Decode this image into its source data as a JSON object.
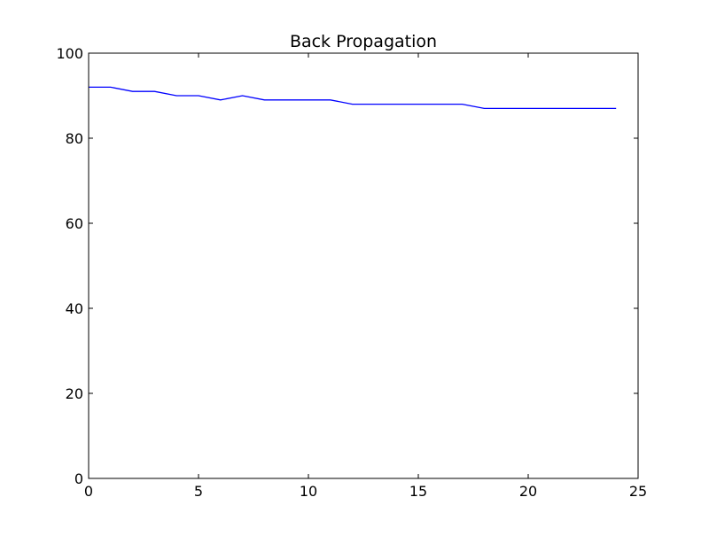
{
  "chart_data": {
    "type": "line",
    "title": "Back Propagation",
    "xlabel": "",
    "ylabel": "",
    "xlim": [
      0,
      25
    ],
    "ylim": [
      0,
      100
    ],
    "xticks": [
      0,
      5,
      10,
      15,
      20,
      25
    ],
    "yticks": [
      0,
      20,
      40,
      60,
      80,
      100
    ],
    "xtick_labels": [
      "0",
      "5",
      "10",
      "15",
      "20",
      "25"
    ],
    "ytick_labels": [
      "0",
      "20",
      "40",
      "60",
      "80",
      "100"
    ],
    "grid": false,
    "series": [
      {
        "color": "#0000ff",
        "x": [
          0,
          1,
          2,
          3,
          4,
          5,
          6,
          7,
          8,
          9,
          10,
          11,
          12,
          13,
          14,
          15,
          16,
          17,
          18,
          19,
          20,
          21,
          22,
          23,
          24
        ],
        "values": [
          92,
          92,
          91,
          91,
          90,
          90,
          89,
          90,
          89,
          89,
          89,
          89,
          88,
          88,
          88,
          88,
          88,
          88,
          87,
          87,
          87,
          87,
          87,
          87,
          87
        ]
      }
    ]
  }
}
